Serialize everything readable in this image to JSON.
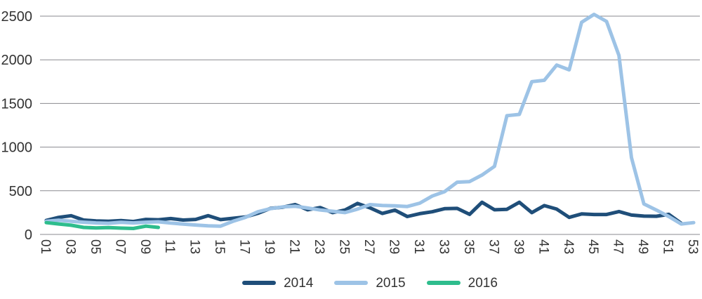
{
  "chart_data": {
    "type": "line",
    "title": "",
    "xlabel": "",
    "ylabel": "",
    "x_axis": {
      "unit": "week-number",
      "tick_labels": [
        "01",
        "03",
        "05",
        "07",
        "09",
        "11",
        "13",
        "15",
        "17",
        "19",
        "21",
        "23",
        "25",
        "27",
        "29",
        "31",
        "33",
        "35",
        "37",
        "39",
        "41",
        "43",
        "45",
        "47",
        "49",
        "51",
        "53"
      ],
      "range_weeks": [
        1,
        53
      ],
      "label_rotation_deg": 90
    },
    "y_axis": {
      "ticks": [
        0,
        500,
        1000,
        1500,
        2000,
        2500
      ],
      "ylim": [
        0,
        2500
      ]
    },
    "grid": "horizontal",
    "legend_position": "bottom-center",
    "series": [
      {
        "name": "2014",
        "color": "#1F4E79",
        "start_week": 1,
        "values": [
          160,
          195,
          215,
          165,
          155,
          150,
          158,
          148,
          172,
          168,
          182,
          165,
          172,
          215,
          170,
          185,
          200,
          242,
          298,
          312,
          342,
          282,
          308,
          250,
          280,
          355,
          305,
          240,
          278,
          205,
          238,
          260,
          295,
          298,
          230,
          368,
          282,
          288,
          368,
          250,
          330,
          290,
          195,
          235,
          228,
          228,
          262,
          222,
          210,
          208,
          230,
          128
        ]
      },
      {
        "name": "2015",
        "color": "#9DC3E6",
        "start_week": 1,
        "values": [
          150,
          162,
          150,
          140,
          132,
          128,
          138,
          132,
          140,
          145,
          130,
          118,
          108,
          98,
          95,
          150,
          195,
          260,
          295,
          315,
          322,
          302,
          280,
          265,
          250,
          290,
          342,
          332,
          328,
          320,
          358,
          440,
          490,
          598,
          605,
          680,
          780,
          1360,
          1375,
          1750,
          1765,
          1940,
          1885,
          2430,
          2520,
          2440,
          2050,
          880,
          350,
          280,
          205,
          120,
          135
        ]
      },
      {
        "name": "2016",
        "color": "#2EBD8D",
        "start_week": 1,
        "values": [
          135,
          120,
          105,
          80,
          75,
          78,
          72,
          68,
          95,
          80
        ]
      }
    ]
  },
  "style": {
    "grid_color": "#8a8a8f",
    "axis_text_color": "#333333",
    "background": "#ffffff",
    "line_width": 5
  }
}
